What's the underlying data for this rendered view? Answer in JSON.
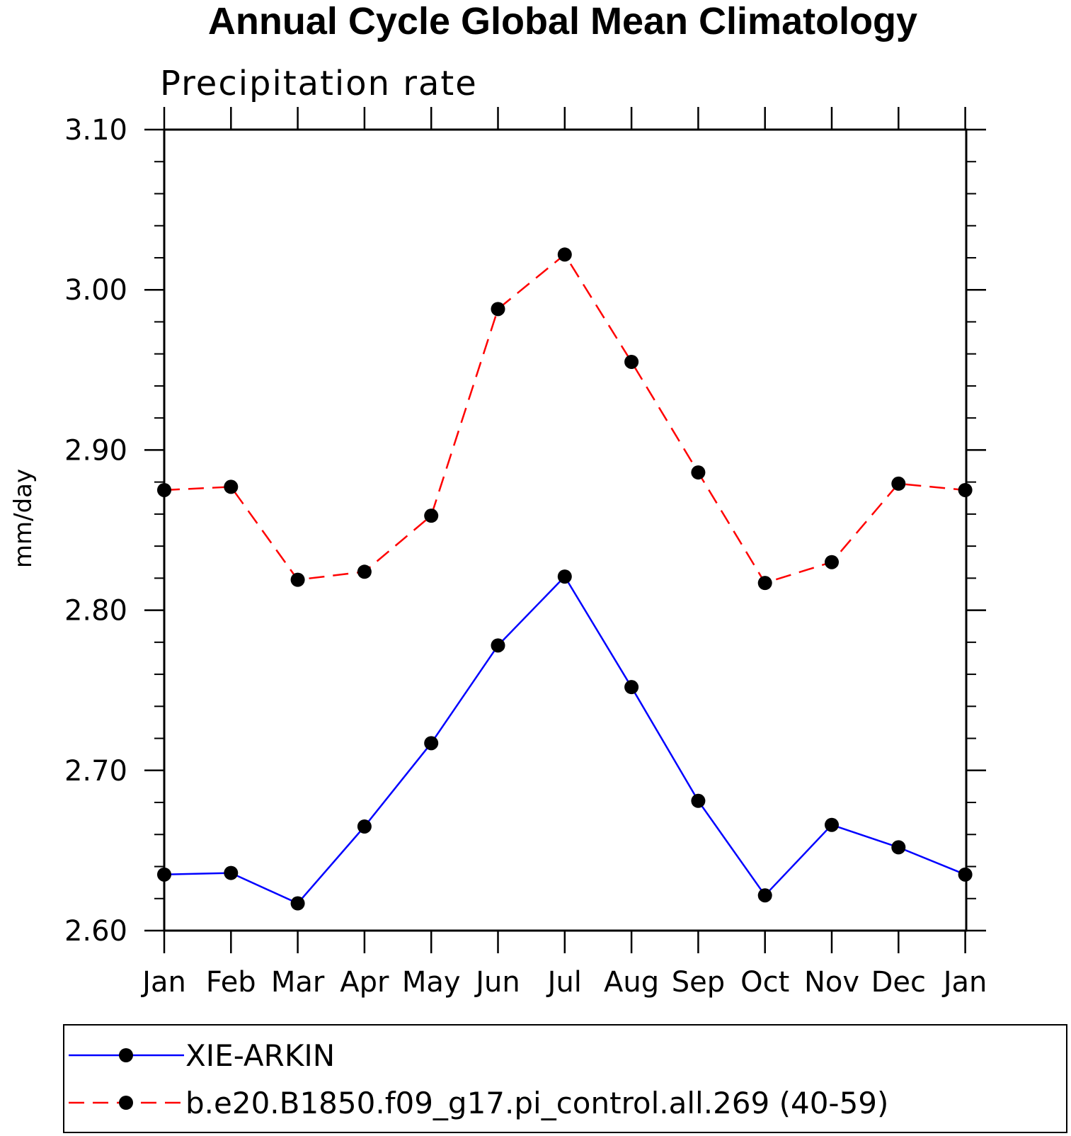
{
  "chart_data": {
    "type": "line",
    "title": "Annual Cycle Global Mean Climatology",
    "subtitle": "Precipitation rate",
    "xlabel": "",
    "ylabel": "mm/day",
    "categories": [
      "Jan",
      "Feb",
      "Mar",
      "Apr",
      "May",
      "Jun",
      "Jul",
      "Aug",
      "Sep",
      "Oct",
      "Nov",
      "Dec",
      "Jan"
    ],
    "ylim": [
      2.6,
      3.1
    ],
    "yticks": [
      "2.60",
      "2.70",
      "2.80",
      "2.90",
      "3.00",
      "3.10"
    ],
    "ytick_values": [
      2.6,
      2.7,
      2.8,
      2.9,
      3.0,
      3.1
    ],
    "grid": false,
    "legend_position": "bottom",
    "series": [
      {
        "name": "XIE-ARKIN",
        "color": "#0000ff",
        "line_style": "solid",
        "marker": "filled-circle",
        "values": [
          2.635,
          2.636,
          2.617,
          2.665,
          2.717,
          2.778,
          2.821,
          2.752,
          2.681,
          2.622,
          2.666,
          2.652,
          2.635
        ]
      },
      {
        "name": "b.e20.B1850.f09_g17.pi_control.all.269 (40-59)",
        "color": "#ff0000",
        "line_style": "dashed",
        "marker": "filled-circle",
        "values": [
          2.875,
          2.877,
          2.819,
          2.824,
          2.859,
          2.988,
          3.022,
          2.955,
          2.886,
          2.817,
          2.83,
          2.879,
          2.875
        ]
      }
    ]
  }
}
